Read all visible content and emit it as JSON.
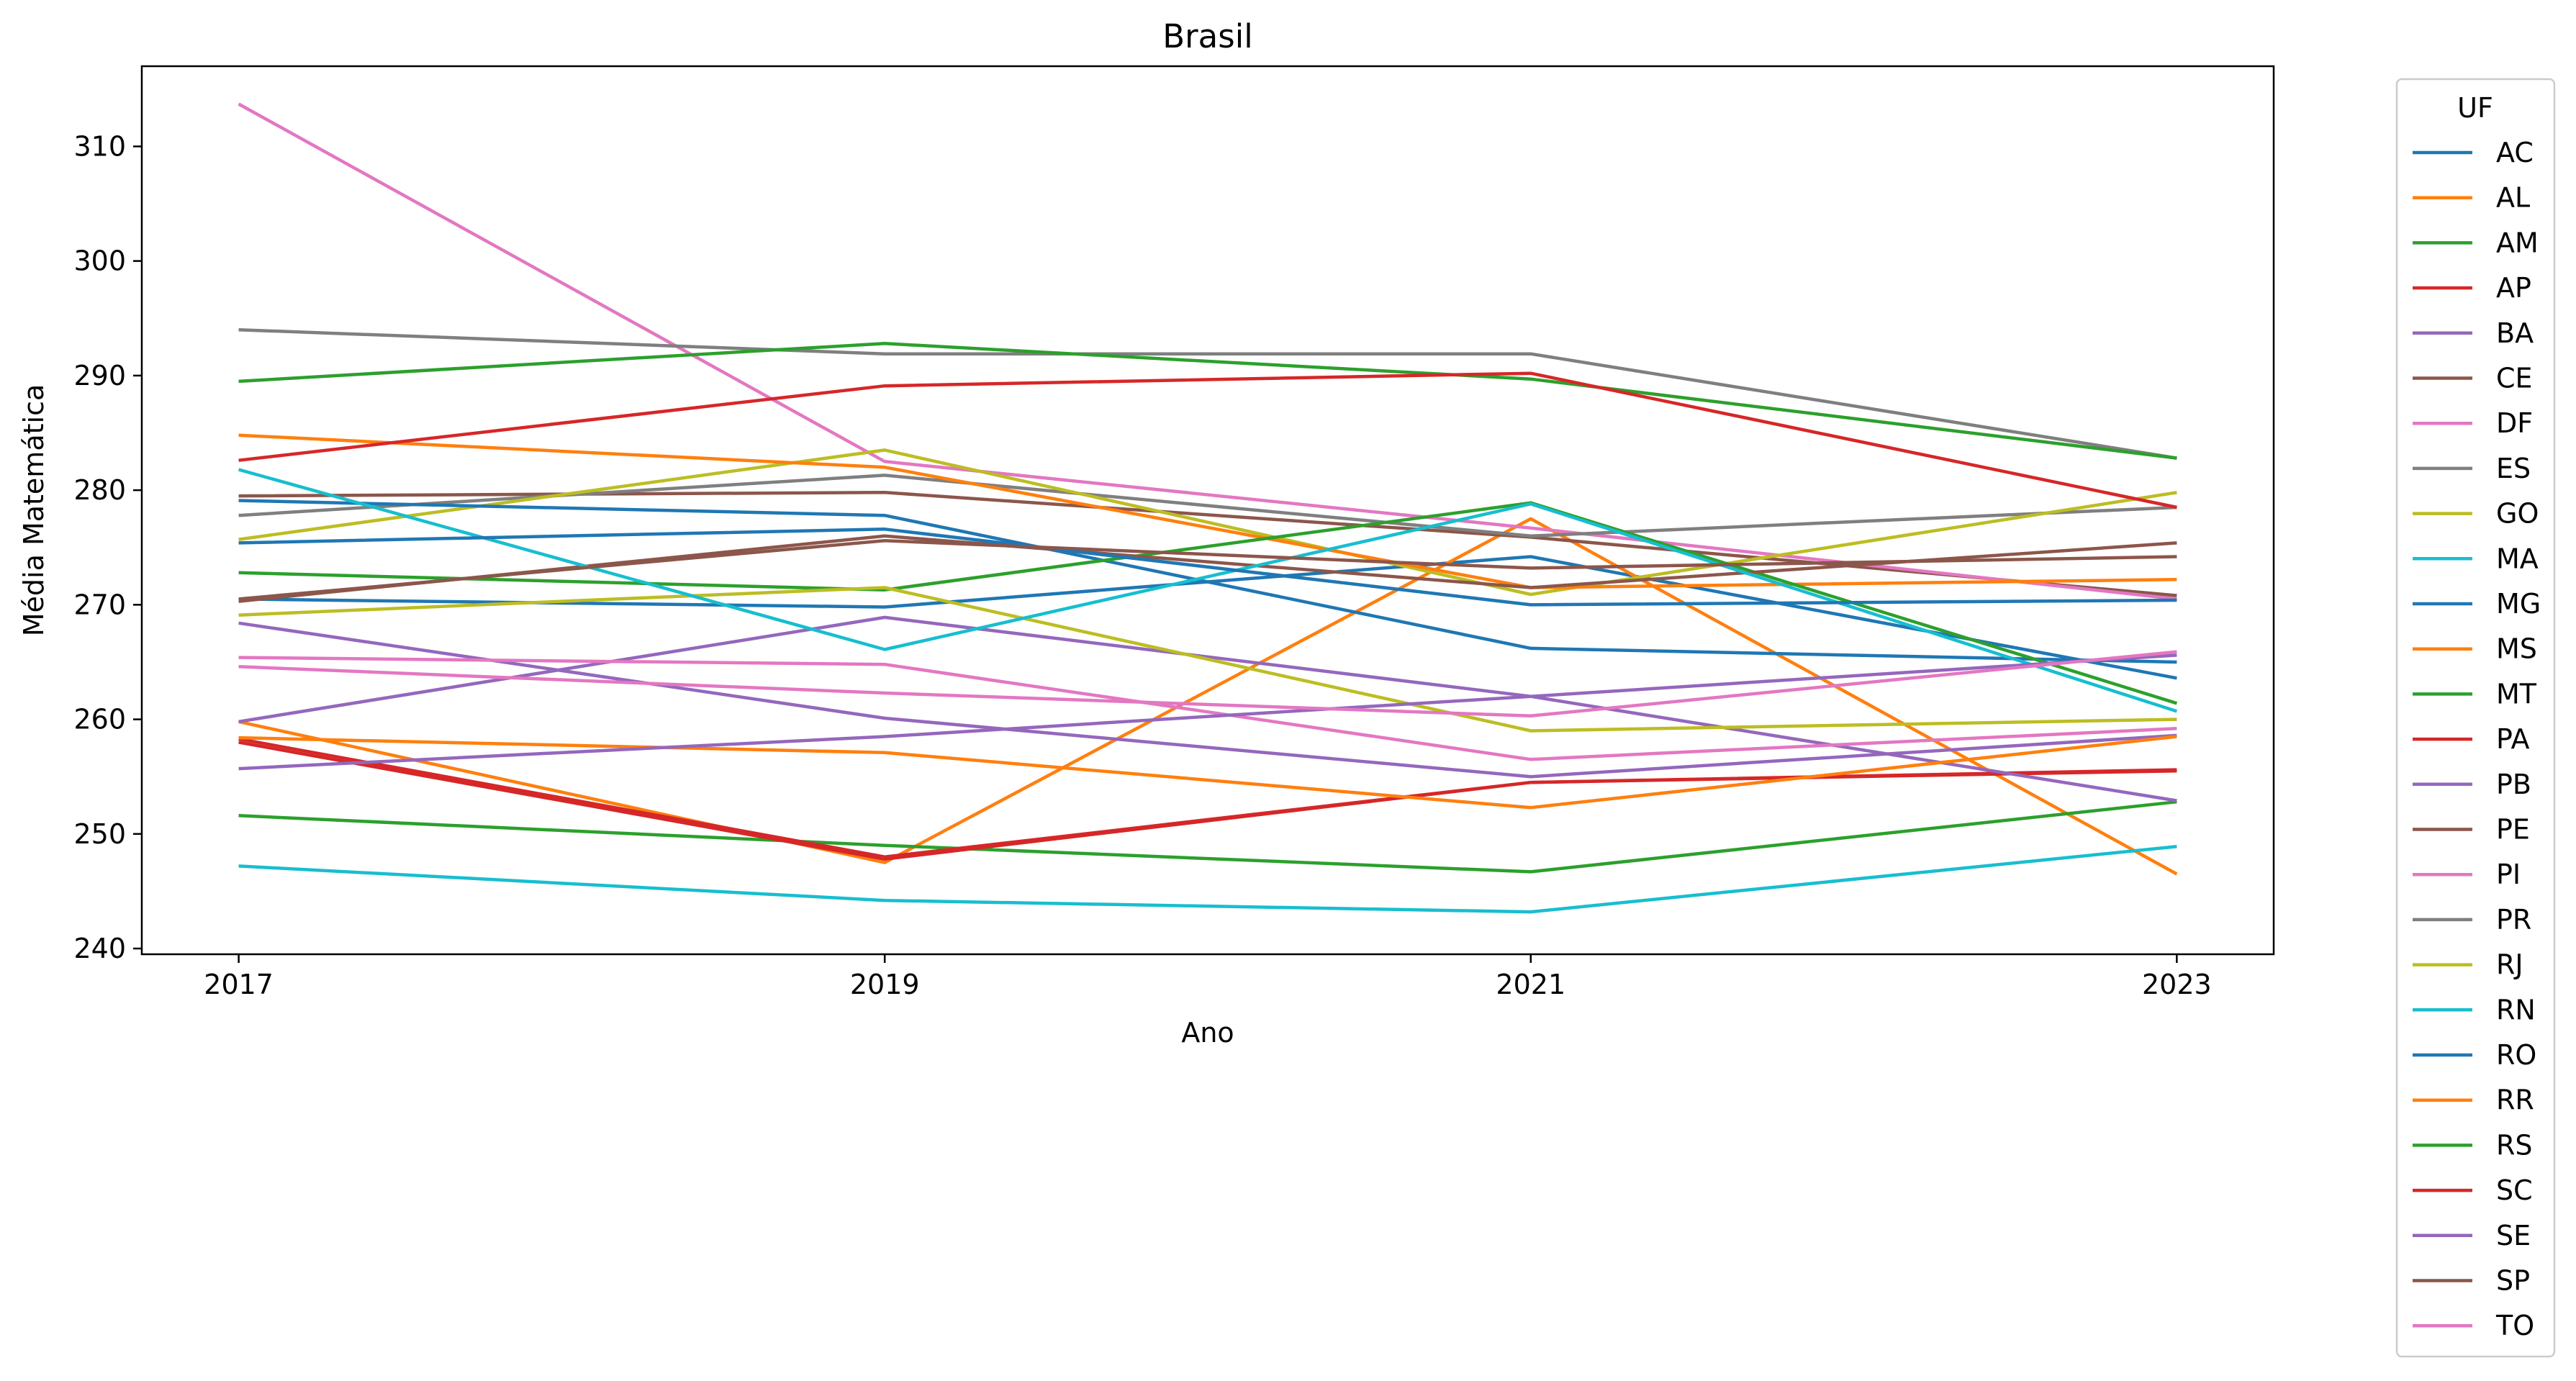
{
  "colors": {
    "AC": "#1f77b4",
    "AL": "#ff7f0e",
    "AM": "#2ca02c",
    "AP": "#d62728",
    "BA": "#9467bd",
    "CE": "#8c564b",
    "DF": "#e377c2",
    "ES": "#7f7f7f",
    "GO": "#bcbd22",
    "MA": "#17becf",
    "MG": "#1f77b4",
    "MS": "#ff7f0e",
    "MT": "#2ca02c",
    "PA": "#d62728",
    "PB": "#9467bd",
    "PE": "#8c564b",
    "PI": "#e377c2",
    "PR": "#7f7f7f",
    "RJ": "#bcbd22",
    "RN": "#17becf",
    "RO": "#1f77b4",
    "RR": "#ff7f0e",
    "RS": "#2ca02c",
    "SC": "#d62728",
    "SE": "#9467bd",
    "SP": "#8c564b",
    "TO": "#e377c2"
  },
  "chart_data": {
    "type": "line",
    "title": "Brasil",
    "xlabel": "Ano",
    "ylabel": "Média Matemática",
    "x": [
      2017,
      2019,
      2021,
      2023
    ],
    "x_ticks": [
      "2017",
      "2019",
      "2021",
      "2023"
    ],
    "y_ticks": [
      "240",
      "250",
      "260",
      "270",
      "280",
      "290",
      "300",
      "310"
    ],
    "ylim": [
      239.5,
      317.0
    ],
    "xlim": [
      2016.7,
      2023.3
    ],
    "grid": false,
    "legend": {
      "title": "UF",
      "placement": "outside-right"
    },
    "series": [
      {
        "name": "AC",
        "values": [
          270.5,
          269.8,
          274.2,
          263.6
        ]
      },
      {
        "name": "AL",
        "values": [
          259.8,
          247.5,
          277.5,
          246.5
        ]
      },
      {
        "name": "AM",
        "values": [
          251.6,
          249.0,
          246.7,
          252.8
        ]
      },
      {
        "name": "AP",
        "values": [
          258.0,
          247.8,
          254.5,
          255.5
        ]
      },
      {
        "name": "BA",
        "values": [
          268.4,
          260.1,
          255.0,
          258.6
        ]
      },
      {
        "name": "CE",
        "values": [
          279.5,
          279.8,
          275.9,
          270.8
        ]
      },
      {
        "name": "DF",
        "values": [
          313.7,
          282.5,
          276.7,
          270.5
        ]
      },
      {
        "name": "ES",
        "values": [
          277.8,
          281.3,
          276.0,
          278.5
        ]
      },
      {
        "name": "GO",
        "values": [
          275.7,
          283.5,
          270.9,
          279.8
        ]
      },
      {
        "name": "MA",
        "values": [
          247.2,
          244.2,
          243.2,
          248.9
        ]
      },
      {
        "name": "MG",
        "values": [
          279.1,
          277.8,
          266.2,
          265.0
        ]
      },
      {
        "name": "MS",
        "values": [
          284.8,
          282.0,
          271.5,
          272.2
        ]
      },
      {
        "name": "MT",
        "values": [
          272.8,
          271.3,
          278.9,
          261.4
        ]
      },
      {
        "name": "PA",
        "values": [
          258.3,
          248.0,
          254.5,
          255.6
        ]
      },
      {
        "name": "PB",
        "values": [
          259.8,
          268.9,
          262.0,
          252.9
        ]
      },
      {
        "name": "PE",
        "values": [
          270.3,
          276.0,
          271.5,
          275.4
        ]
      },
      {
        "name": "PI",
        "values": [
          265.4,
          264.8,
          256.5,
          259.2
        ]
      },
      {
        "name": "PR",
        "values": [
          294.0,
          291.9,
          291.9,
          282.8
        ]
      },
      {
        "name": "RJ",
        "values": [
          269.1,
          271.5,
          259.0,
          260.0
        ]
      },
      {
        "name": "RN",
        "values": [
          281.8,
          266.1,
          278.8,
          260.7
        ]
      },
      {
        "name": "RO",
        "values": [
          275.4,
          276.6,
          270.0,
          270.4
        ]
      },
      {
        "name": "RR",
        "values": [
          258.4,
          257.1,
          252.3,
          258.5
        ]
      },
      {
        "name": "RS",
        "values": [
          289.5,
          292.8,
          289.7,
          282.8
        ]
      },
      {
        "name": "SC",
        "values": [
          282.6,
          289.1,
          290.2,
          278.5
        ]
      },
      {
        "name": "SE",
        "values": [
          255.7,
          258.5,
          262.0,
          265.6
        ]
      },
      {
        "name": "SP",
        "values": [
          270.5,
          275.6,
          273.2,
          274.2
        ]
      },
      {
        "name": "TO",
        "values": [
          264.6,
          262.3,
          260.3,
          265.9
        ]
      }
    ]
  }
}
